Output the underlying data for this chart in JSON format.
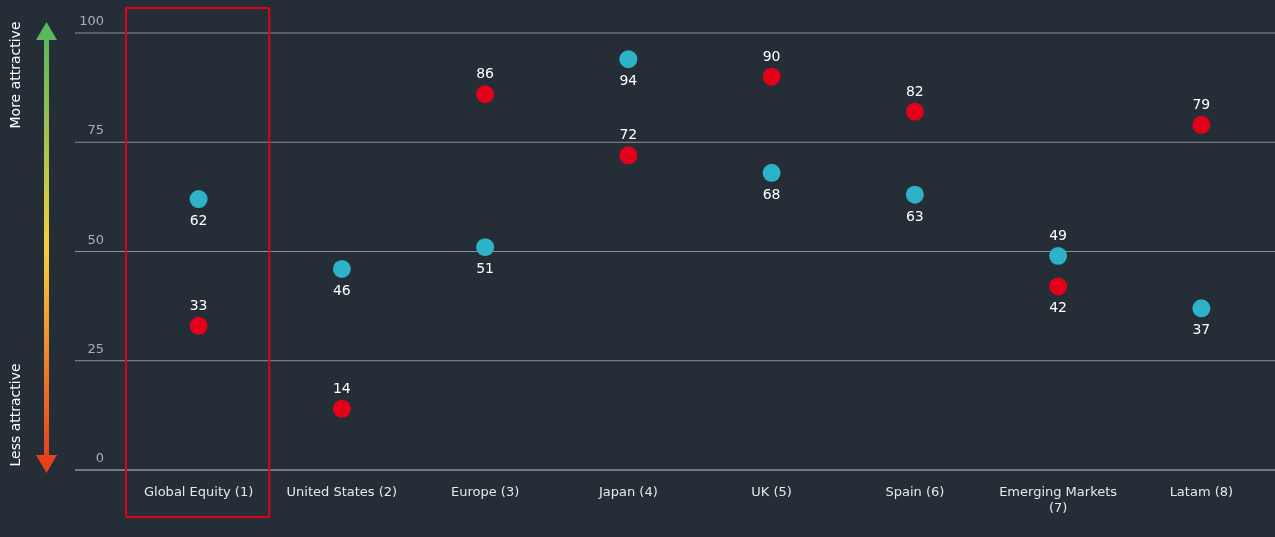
{
  "chart_data": {
    "type": "scatter",
    "categories": [
      "Global Equity (1)",
      "United States (2)",
      "Europe (3)",
      "Japan (4)",
      "UK (5)",
      "Spain (6)",
      "Emerging Markets (7)",
      "Latam (8)"
    ],
    "series": [
      {
        "color": "#2db3c8",
        "values": [
          62,
          46,
          51,
          94,
          68,
          63,
          49,
          37
        ]
      },
      {
        "color": "#e3001b",
        "values": [
          33,
          14,
          86,
          72,
          90,
          82,
          42,
          79
        ]
      }
    ],
    "ylim": [
      0,
      100
    ],
    "yticks": [
      0,
      25,
      50,
      75,
      100
    ],
    "grid": "y",
    "marker": "circle",
    "data_labels": true,
    "annotations": [
      "More attractive",
      "Less attractive"
    ]
  }
}
